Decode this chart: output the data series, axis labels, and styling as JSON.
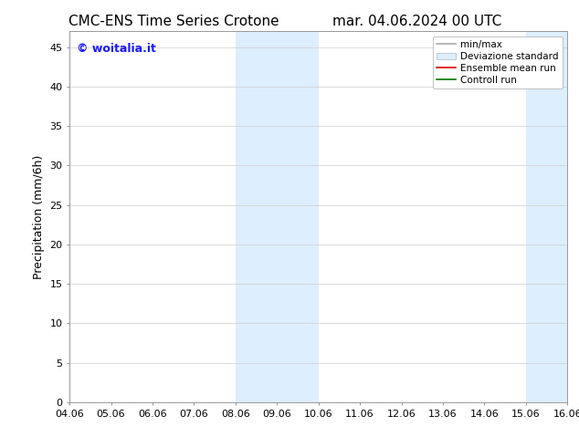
{
  "title_left": "CMC-ENS Time Series Crotone",
  "title_right": "mar. 04.06.2024 00 UTC",
  "xlabel": "",
  "ylabel": "Precipitation (mm/6h)",
  "watermark": "© woitalia.it",
  "watermark_color": "#1a1aff",
  "xlim_start": 0,
  "xlim_end": 12,
  "ylim_bottom": 0,
  "ylim_top": 47,
  "yticks": [
    0,
    5,
    10,
    15,
    20,
    25,
    30,
    35,
    40,
    45
  ],
  "xtick_labels": [
    "04.06",
    "05.06",
    "06.06",
    "07.06",
    "08.06",
    "09.06",
    "10.06",
    "11.06",
    "12.06",
    "13.06",
    "14.06",
    "15.06",
    "16.06"
  ],
  "xtick_positions": [
    0,
    1,
    2,
    3,
    4,
    5,
    6,
    7,
    8,
    9,
    10,
    11,
    12
  ],
  "shaded_regions": [
    {
      "x_start": 4,
      "x_end": 6,
      "color": "#ddeeff"
    },
    {
      "x_start": 11,
      "x_end": 12,
      "color": "#ddeeff"
    }
  ],
  "legend_labels": [
    "min/max",
    "Deviazione standard",
    "Ensemble mean run",
    "Controll run"
  ],
  "background_color": "#ffffff",
  "grid_color": "#cccccc",
  "font_size_title": 11,
  "font_size_tick": 8,
  "font_size_ylabel": 9,
  "font_size_legend": 7.5,
  "font_size_watermark": 9
}
